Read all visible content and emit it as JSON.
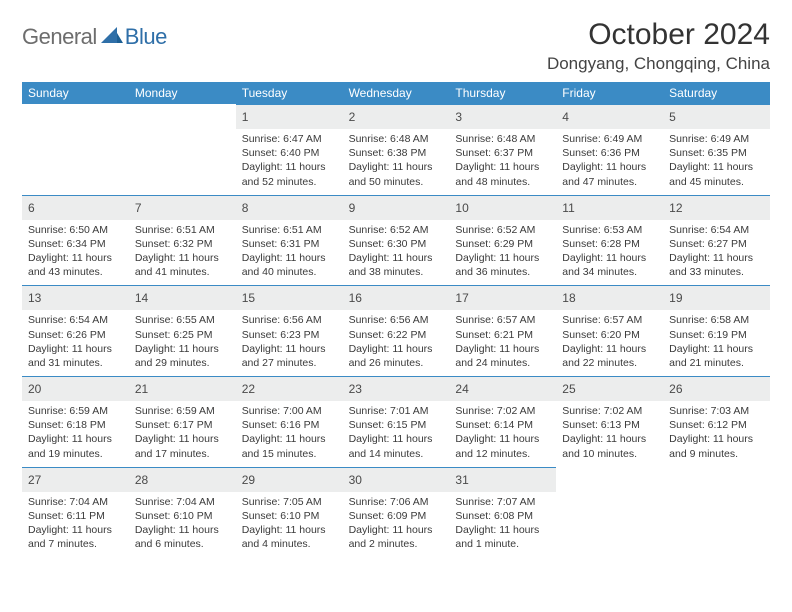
{
  "brand": {
    "part1": "General",
    "part2": "Blue"
  },
  "title": "October 2024",
  "location": "Dongyang, Chongqing, China",
  "colors": {
    "header_bg": "#3b8bc5",
    "header_fg": "#ffffff",
    "daynum_bg": "#eceded",
    "border": "#3b8bc5",
    "text": "#333333",
    "logo_gray": "#6d6d6d",
    "logo_blue": "#2f6fa8"
  },
  "day_names": [
    "Sunday",
    "Monday",
    "Tuesday",
    "Wednesday",
    "Thursday",
    "Friday",
    "Saturday"
  ],
  "weeks": [
    [
      {
        "n": null
      },
      {
        "n": null
      },
      {
        "n": 1,
        "sr": "Sunrise: 6:47 AM",
        "ss": "Sunset: 6:40 PM",
        "dl": "Daylight: 11 hours and 52 minutes."
      },
      {
        "n": 2,
        "sr": "Sunrise: 6:48 AM",
        "ss": "Sunset: 6:38 PM",
        "dl": "Daylight: 11 hours and 50 minutes."
      },
      {
        "n": 3,
        "sr": "Sunrise: 6:48 AM",
        "ss": "Sunset: 6:37 PM",
        "dl": "Daylight: 11 hours and 48 minutes."
      },
      {
        "n": 4,
        "sr": "Sunrise: 6:49 AM",
        "ss": "Sunset: 6:36 PM",
        "dl": "Daylight: 11 hours and 47 minutes."
      },
      {
        "n": 5,
        "sr": "Sunrise: 6:49 AM",
        "ss": "Sunset: 6:35 PM",
        "dl": "Daylight: 11 hours and 45 minutes."
      }
    ],
    [
      {
        "n": 6,
        "sr": "Sunrise: 6:50 AM",
        "ss": "Sunset: 6:34 PM",
        "dl": "Daylight: 11 hours and 43 minutes."
      },
      {
        "n": 7,
        "sr": "Sunrise: 6:51 AM",
        "ss": "Sunset: 6:32 PM",
        "dl": "Daylight: 11 hours and 41 minutes."
      },
      {
        "n": 8,
        "sr": "Sunrise: 6:51 AM",
        "ss": "Sunset: 6:31 PM",
        "dl": "Daylight: 11 hours and 40 minutes."
      },
      {
        "n": 9,
        "sr": "Sunrise: 6:52 AM",
        "ss": "Sunset: 6:30 PM",
        "dl": "Daylight: 11 hours and 38 minutes."
      },
      {
        "n": 10,
        "sr": "Sunrise: 6:52 AM",
        "ss": "Sunset: 6:29 PM",
        "dl": "Daylight: 11 hours and 36 minutes."
      },
      {
        "n": 11,
        "sr": "Sunrise: 6:53 AM",
        "ss": "Sunset: 6:28 PM",
        "dl": "Daylight: 11 hours and 34 minutes."
      },
      {
        "n": 12,
        "sr": "Sunrise: 6:54 AM",
        "ss": "Sunset: 6:27 PM",
        "dl": "Daylight: 11 hours and 33 minutes."
      }
    ],
    [
      {
        "n": 13,
        "sr": "Sunrise: 6:54 AM",
        "ss": "Sunset: 6:26 PM",
        "dl": "Daylight: 11 hours and 31 minutes."
      },
      {
        "n": 14,
        "sr": "Sunrise: 6:55 AM",
        "ss": "Sunset: 6:25 PM",
        "dl": "Daylight: 11 hours and 29 minutes."
      },
      {
        "n": 15,
        "sr": "Sunrise: 6:56 AM",
        "ss": "Sunset: 6:23 PM",
        "dl": "Daylight: 11 hours and 27 minutes."
      },
      {
        "n": 16,
        "sr": "Sunrise: 6:56 AM",
        "ss": "Sunset: 6:22 PM",
        "dl": "Daylight: 11 hours and 26 minutes."
      },
      {
        "n": 17,
        "sr": "Sunrise: 6:57 AM",
        "ss": "Sunset: 6:21 PM",
        "dl": "Daylight: 11 hours and 24 minutes."
      },
      {
        "n": 18,
        "sr": "Sunrise: 6:57 AM",
        "ss": "Sunset: 6:20 PM",
        "dl": "Daylight: 11 hours and 22 minutes."
      },
      {
        "n": 19,
        "sr": "Sunrise: 6:58 AM",
        "ss": "Sunset: 6:19 PM",
        "dl": "Daylight: 11 hours and 21 minutes."
      }
    ],
    [
      {
        "n": 20,
        "sr": "Sunrise: 6:59 AM",
        "ss": "Sunset: 6:18 PM",
        "dl": "Daylight: 11 hours and 19 minutes."
      },
      {
        "n": 21,
        "sr": "Sunrise: 6:59 AM",
        "ss": "Sunset: 6:17 PM",
        "dl": "Daylight: 11 hours and 17 minutes."
      },
      {
        "n": 22,
        "sr": "Sunrise: 7:00 AM",
        "ss": "Sunset: 6:16 PM",
        "dl": "Daylight: 11 hours and 15 minutes."
      },
      {
        "n": 23,
        "sr": "Sunrise: 7:01 AM",
        "ss": "Sunset: 6:15 PM",
        "dl": "Daylight: 11 hours and 14 minutes."
      },
      {
        "n": 24,
        "sr": "Sunrise: 7:02 AM",
        "ss": "Sunset: 6:14 PM",
        "dl": "Daylight: 11 hours and 12 minutes."
      },
      {
        "n": 25,
        "sr": "Sunrise: 7:02 AM",
        "ss": "Sunset: 6:13 PM",
        "dl": "Daylight: 11 hours and 10 minutes."
      },
      {
        "n": 26,
        "sr": "Sunrise: 7:03 AM",
        "ss": "Sunset: 6:12 PM",
        "dl": "Daylight: 11 hours and 9 minutes."
      }
    ],
    [
      {
        "n": 27,
        "sr": "Sunrise: 7:04 AM",
        "ss": "Sunset: 6:11 PM",
        "dl": "Daylight: 11 hours and 7 minutes."
      },
      {
        "n": 28,
        "sr": "Sunrise: 7:04 AM",
        "ss": "Sunset: 6:10 PM",
        "dl": "Daylight: 11 hours and 6 minutes."
      },
      {
        "n": 29,
        "sr": "Sunrise: 7:05 AM",
        "ss": "Sunset: 6:10 PM",
        "dl": "Daylight: 11 hours and 4 minutes."
      },
      {
        "n": 30,
        "sr": "Sunrise: 7:06 AM",
        "ss": "Sunset: 6:09 PM",
        "dl": "Daylight: 11 hours and 2 minutes."
      },
      {
        "n": 31,
        "sr": "Sunrise: 7:07 AM",
        "ss": "Sunset: 6:08 PM",
        "dl": "Daylight: 11 hours and 1 minute."
      },
      {
        "n": null
      },
      {
        "n": null
      }
    ]
  ]
}
